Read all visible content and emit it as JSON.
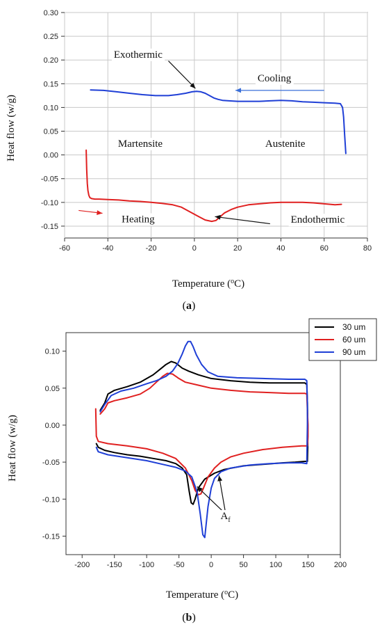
{
  "chart_data": [
    {
      "type": "line",
      "panel_label": "a",
      "xlabel": "Temperature",
      "xlabel_unit_prefix": "o",
      "xlabel_unit_suffix": "C",
      "ylabel": "Heat flow (w/g)",
      "xlim": [
        -60,
        80
      ],
      "ylim": [
        -0.175,
        0.3
      ],
      "xticks": [
        -60,
        -40,
        -20,
        0,
        20,
        40,
        60,
        80
      ],
      "yticks": [
        0.3,
        0.25,
        0.2,
        0.15,
        0.1,
        0.05,
        0.0,
        -0.05,
        -0.1,
        -0.15
      ],
      "ytick_labels": [
        "0.30",
        "0.25",
        "0.20",
        "0.15",
        "0.10",
        "0.05",
        "0.00",
        "-0.05",
        "-0.10",
        "-0.15"
      ],
      "grid": true,
      "series": [
        {
          "color": "#1f3fd6",
          "x": [
            -48,
            -42,
            -36,
            -30,
            -24,
            -18,
            -12,
            -8,
            -4,
            -1,
            1,
            3,
            5,
            7,
            9,
            11,
            13,
            16,
            20,
            25,
            30,
            35,
            40,
            45,
            50,
            55,
            60,
            65,
            67.5,
            68.5,
            69,
            69.5,
            70
          ],
          "y": [
            0.137,
            0.136,
            0.133,
            0.13,
            0.127,
            0.125,
            0.125,
            0.127,
            0.13,
            0.133,
            0.134,
            0.133,
            0.13,
            0.125,
            0.12,
            0.117,
            0.115,
            0.114,
            0.113,
            0.113,
            0.113,
            0.114,
            0.115,
            0.114,
            0.112,
            0.111,
            0.11,
            0.109,
            0.108,
            0.1,
            0.08,
            0.04,
            0.003
          ]
        },
        {
          "color": "#e02020",
          "x": [
            -50,
            -49.8,
            -49.5,
            -49.2,
            -48.8,
            -48.3,
            -47.5,
            -46,
            -44,
            -40,
            -35,
            -30,
            -25,
            -20,
            -15,
            -10,
            -6,
            -2,
            2,
            5,
            8,
            10,
            12,
            14,
            17,
            20,
            25,
            30,
            35,
            40,
            45,
            50,
            55,
            60,
            65,
            68
          ],
          "y": [
            0.01,
            -0.03,
            -0.06,
            -0.075,
            -0.085,
            -0.09,
            -0.092,
            -0.093,
            -0.093,
            -0.094,
            -0.095,
            -0.097,
            -0.098,
            -0.1,
            -0.102,
            -0.105,
            -0.11,
            -0.12,
            -0.13,
            -0.137,
            -0.14,
            -0.138,
            -0.13,
            -0.122,
            -0.115,
            -0.11,
            -0.105,
            -0.103,
            -0.101,
            -0.1,
            -0.1,
            -0.1,
            -0.101,
            -0.103,
            -0.105,
            -0.104
          ]
        }
      ],
      "annotations": [
        {
          "text": "Exothermic",
          "x": -26,
          "y": 0.205
        },
        {
          "text": "Cooling",
          "x": 37,
          "y": 0.155
        },
        {
          "text": "Martensite",
          "x": -25,
          "y": 0.017
        },
        {
          "text": "Austenite",
          "x": 42,
          "y": 0.017
        },
        {
          "text": "Heating",
          "x": -26,
          "y": -0.142
        },
        {
          "text": "Endothermic",
          "x": 57,
          "y": -0.143
        }
      ],
      "arrows": [
        {
          "color": "#111111",
          "from": [
            -12,
            0.198
          ],
          "to": [
            0.5,
            0.14
          ]
        },
        {
          "color": "#3a6fd8",
          "from": [
            60,
            0.136
          ],
          "to": [
            19,
            0.136
          ]
        },
        {
          "color": "#e02020",
          "from": [
            -53.5,
            -0.117
          ],
          "to": [
            -42.5,
            -0.123
          ]
        },
        {
          "color": "#111111",
          "from": [
            35,
            -0.145
          ],
          "to": [
            9.5,
            -0.13
          ]
        }
      ]
    },
    {
      "type": "line",
      "panel_label": "b",
      "xlabel": "Temperature",
      "xlabel_unit_prefix": "o",
      "xlabel_unit_suffix": "C",
      "ylabel": "Heat flow (w/g)",
      "xlim": [
        -225,
        200
      ],
      "ylim": [
        -0.175,
        0.125
      ],
      "xticks": [
        -200,
        -150,
        -100,
        -50,
        0,
        50,
        100,
        150,
        200
      ],
      "yticks": [
        0.1,
        0.05,
        0.0,
        -0.05,
        -0.1,
        -0.15
      ],
      "ytick_labels": [
        "0.10",
        "0.05",
        "0.00",
        "-0.05",
        "-0.10",
        "-0.15"
      ],
      "grid": false,
      "legend": "top-right",
      "series": [
        {
          "name": "30 um",
          "color": "#000000",
          "x": [
            -172,
            -165,
            -160,
            -150,
            -130,
            -110,
            -90,
            -80,
            -70,
            -62,
            -55,
            -45,
            -35,
            -20,
            0,
            30,
            60,
            90,
            120,
            145,
            148,
            149,
            149.5,
            149.5,
            149,
            145,
            130,
            110,
            80,
            50,
            20,
            5,
            -10,
            -20,
            -25,
            -28,
            -31,
            -34,
            -38,
            -45,
            -55,
            -70,
            -90,
            -110,
            -130,
            -150,
            -165,
            -175,
            -178
          ],
          "y": [
            0.02,
            0.03,
            0.042,
            0.047,
            0.052,
            0.058,
            0.068,
            0.075,
            0.082,
            0.086,
            0.084,
            0.077,
            0.073,
            0.068,
            0.063,
            0.06,
            0.058,
            0.057,
            0.057,
            0.057,
            0.055,
            0.03,
            0.0,
            -0.03,
            -0.049,
            -0.049,
            -0.05,
            -0.051,
            -0.053,
            -0.055,
            -0.06,
            -0.065,
            -0.073,
            -0.085,
            -0.1,
            -0.107,
            -0.105,
            -0.09,
            -0.067,
            -0.058,
            -0.052,
            -0.048,
            -0.045,
            -0.042,
            -0.04,
            -0.037,
            -0.034,
            -0.03,
            -0.025
          ]
        },
        {
          "name": "60 um",
          "color": "#e02020",
          "x": [
            -172,
            -165,
            -160,
            -150,
            -130,
            -110,
            -95,
            -85,
            -75,
            -68,
            -60,
            -50,
            -40,
            -20,
            0,
            30,
            60,
            90,
            120,
            145,
            148,
            149,
            150,
            150,
            149,
            140,
            110,
            80,
            50,
            30,
            15,
            5,
            -5,
            -12,
            -16,
            -20,
            -25,
            -30,
            -40,
            -55,
            -75,
            -100,
            -130,
            -160,
            -175,
            -178,
            -179
          ],
          "y": [
            0.015,
            0.022,
            0.03,
            0.033,
            0.037,
            0.042,
            0.05,
            0.058,
            0.066,
            0.07,
            0.069,
            0.063,
            0.058,
            0.054,
            0.05,
            0.047,
            0.045,
            0.044,
            0.043,
            0.043,
            0.042,
            0.02,
            0.0,
            -0.015,
            -0.028,
            -0.028,
            -0.03,
            -0.033,
            -0.038,
            -0.043,
            -0.05,
            -0.058,
            -0.07,
            -0.085,
            -0.093,
            -0.094,
            -0.088,
            -0.075,
            -0.058,
            -0.045,
            -0.038,
            -0.032,
            -0.028,
            -0.025,
            -0.022,
            -0.015,
            0.022
          ]
        },
        {
          "name": "90 um",
          "color": "#1f3fd6",
          "x": [
            -172,
            -165,
            -155,
            -140,
            -120,
            -100,
            -85,
            -70,
            -60,
            -52,
            -45,
            -40,
            -36,
            -32,
            -28,
            -23,
            -15,
            -5,
            10,
            40,
            80,
            120,
            145,
            148,
            149,
            149,
            148,
            140,
            120,
            90,
            60,
            30,
            15,
            5,
            0,
            -5,
            -8,
            -10,
            -13,
            -17,
            -22,
            -30,
            -40,
            -55,
            -75,
            -100,
            -130,
            -160,
            -175,
            -178
          ],
          "y": [
            0.018,
            0.028,
            0.04,
            0.046,
            0.05,
            0.056,
            0.06,
            0.066,
            0.073,
            0.083,
            0.096,
            0.107,
            0.113,
            0.113,
            0.106,
            0.095,
            0.082,
            0.072,
            0.066,
            0.064,
            0.063,
            0.062,
            0.062,
            0.06,
            0.03,
            0.0,
            -0.052,
            -0.051,
            -0.051,
            -0.052,
            -0.054,
            -0.058,
            -0.063,
            -0.072,
            -0.085,
            -0.11,
            -0.135,
            -0.152,
            -0.148,
            -0.12,
            -0.09,
            -0.07,
            -0.062,
            -0.057,
            -0.053,
            -0.048,
            -0.044,
            -0.04,
            -0.036,
            -0.03
          ]
        }
      ],
      "annotations": [
        {
          "text": "A",
          "subscript": "f",
          "x": 22,
          "y": -0.127
        }
      ],
      "arrows": [
        {
          "color": "#111111",
          "from": [
            20,
            -0.118
          ],
          "to": [
            -22,
            -0.083
          ]
        },
        {
          "color": "#111111",
          "from": [
            22,
            -0.118
          ],
          "to": [
            12,
            -0.068
          ]
        }
      ]
    }
  ]
}
